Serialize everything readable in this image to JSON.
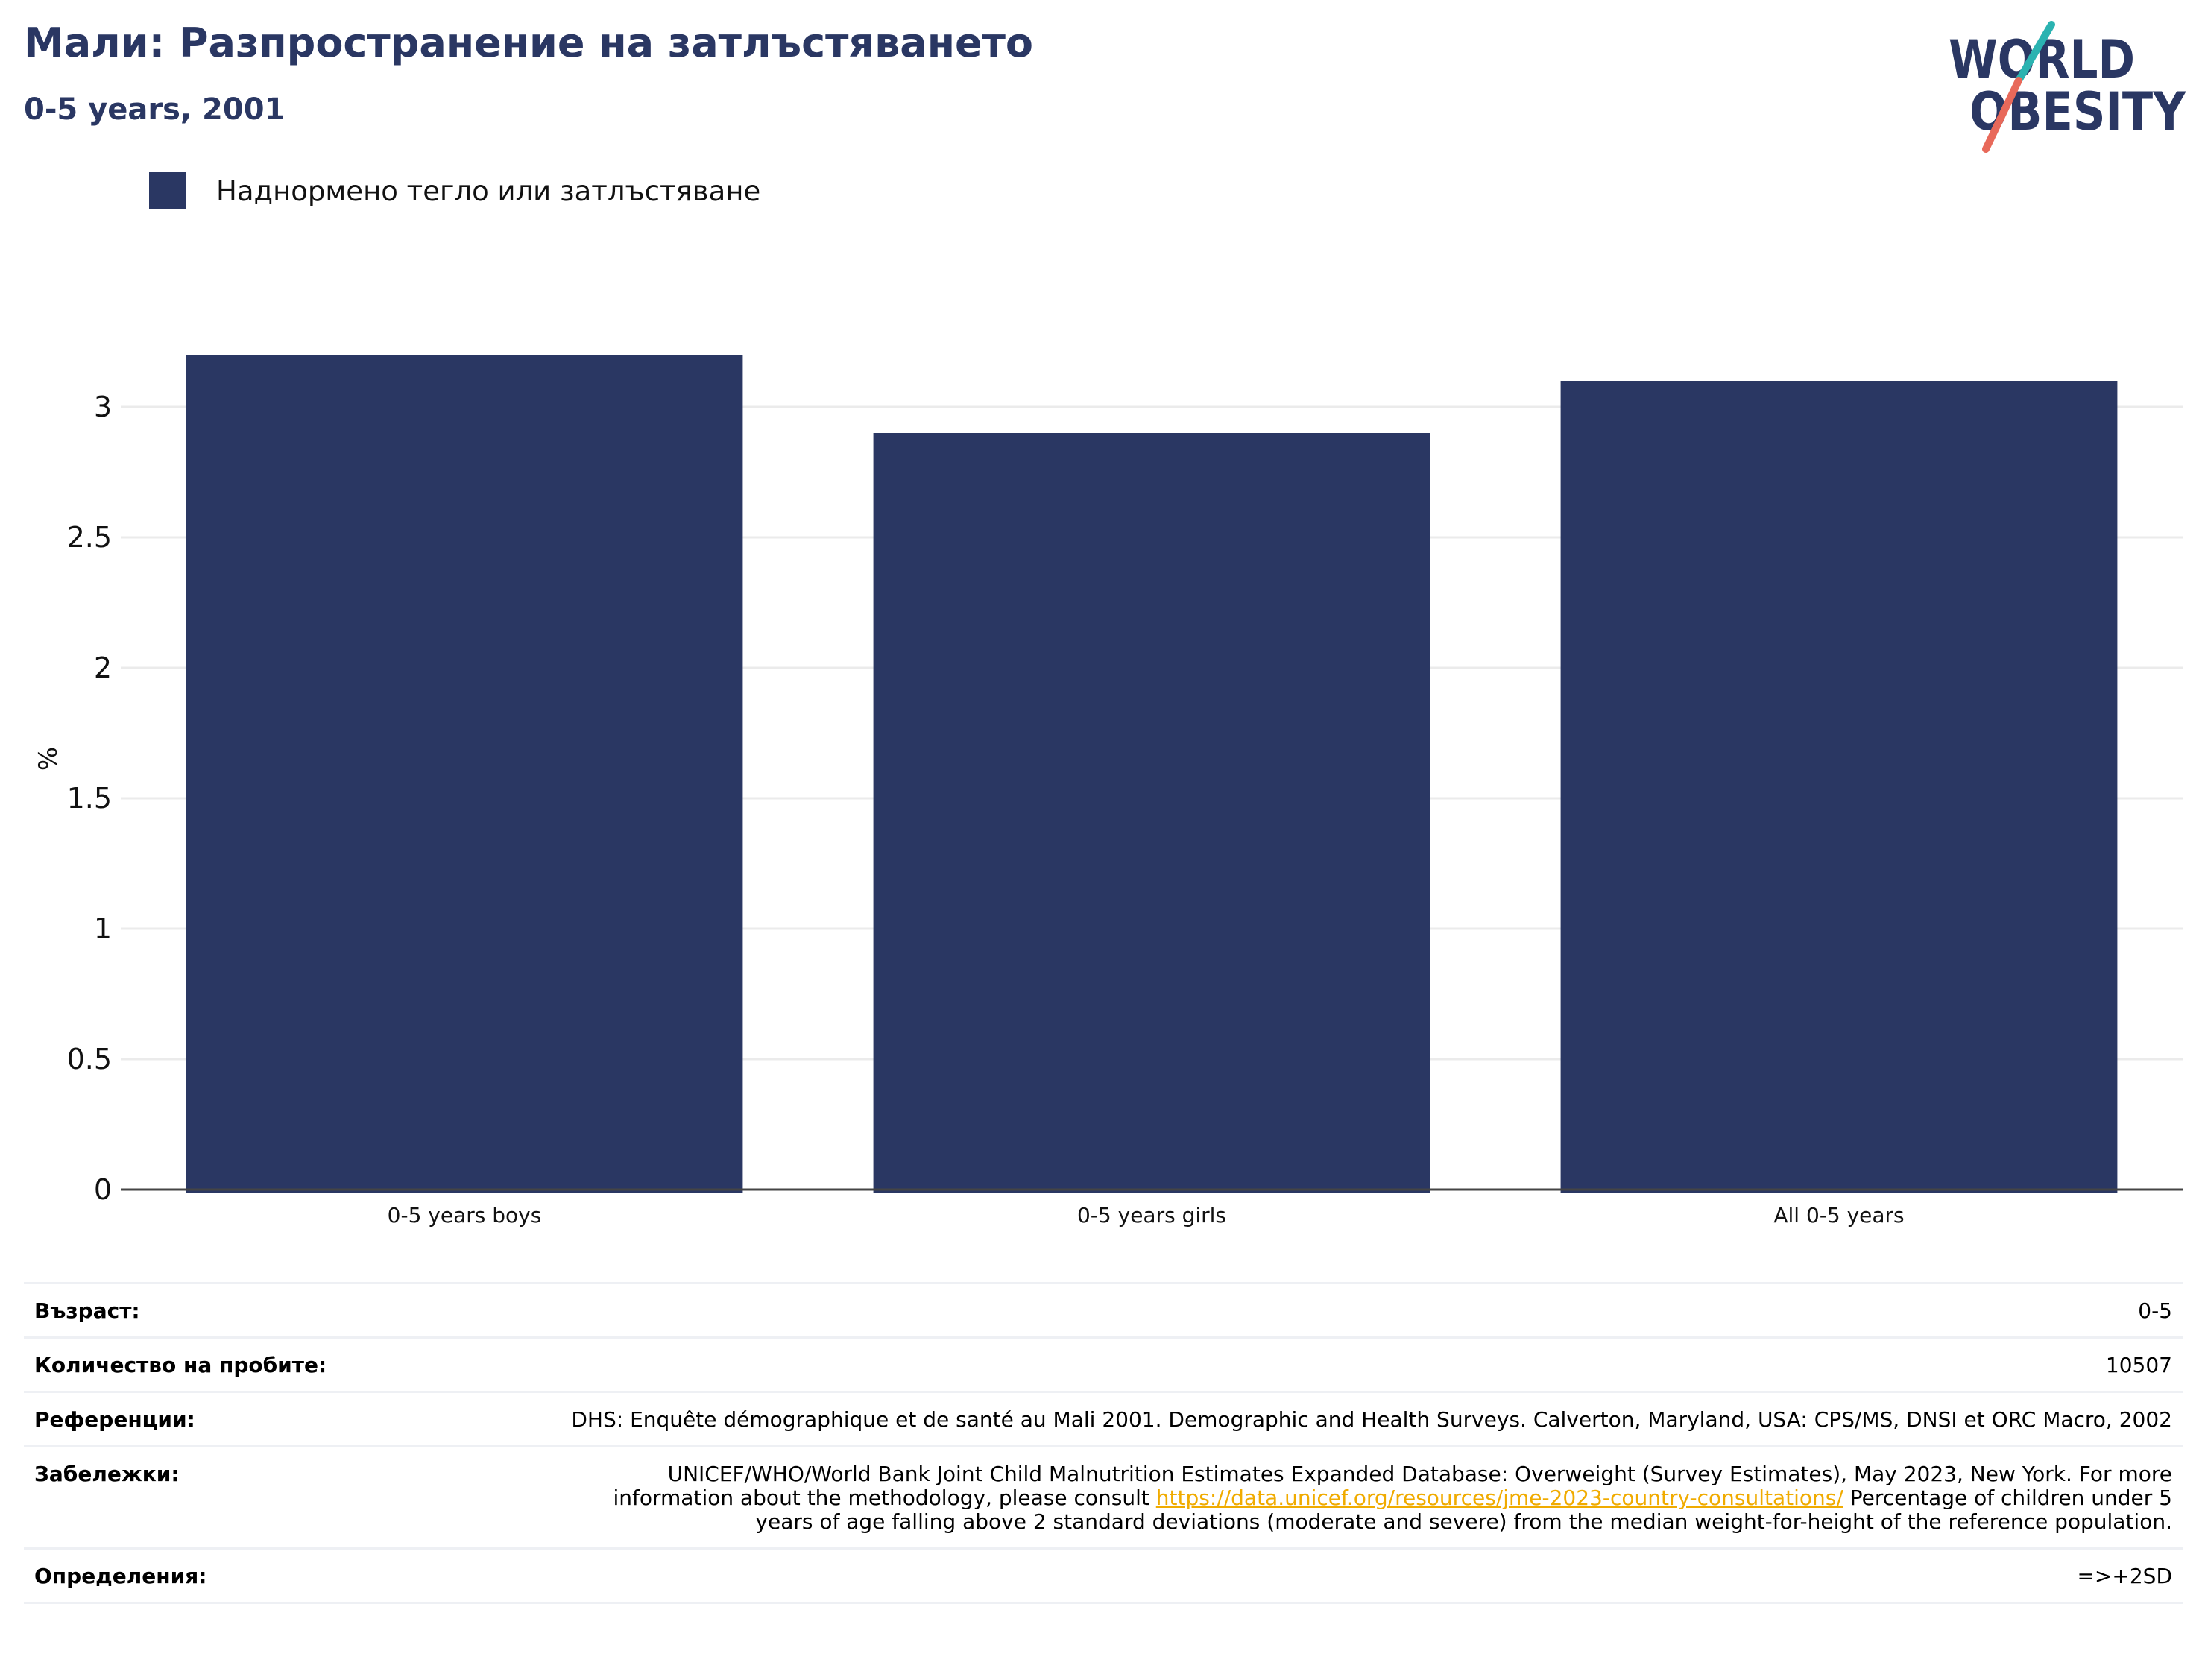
{
  "header": {
    "title": "Мали: Разпространение на затлъстяването",
    "subtitle": "0-5 years, 2001"
  },
  "logo": {
    "line1": "WORLD",
    "line2": "OBESITY",
    "colors": {
      "text": "#2a3763",
      "slash_top": "#2bb3b1",
      "slash_bottom": "#e8695a"
    }
  },
  "legend": {
    "items": [
      {
        "label": "Наднормено тегло или затлъстяване",
        "color": "#2a3763"
      }
    ]
  },
  "chart_data": {
    "type": "bar",
    "categories": [
      "0-5 years boys",
      "0-5 years girls",
      "All 0-5 years"
    ],
    "series": [
      {
        "name": "Наднормено тегло или затлъстяване",
        "values": [
          3.2,
          2.9,
          3.1
        ],
        "color": "#2a3763"
      }
    ],
    "ylabel": "%",
    "ylim": [
      0,
      3.28
    ],
    "yticks": [
      0,
      0.5,
      1,
      1.5,
      2,
      2.5,
      3
    ],
    "ytick_labels": [
      "0",
      "0.5",
      "1",
      "1.5",
      "2",
      "2.5",
      "3"
    ],
    "grid": true,
    "legend_position": "top-left"
  },
  "info": {
    "age": {
      "label": "Възраст:",
      "value": "0-5"
    },
    "sample": {
      "label": "Количество на пробите:",
      "value": "10507"
    },
    "references": {
      "label": "Референции:",
      "value": "DHS: Enquête démographique et de santé au Mali 2001. Demographic and Health Surveys. Calverton, Maryland, USA: CPS/MS, DNSI et ORC Macro, 2002"
    },
    "notes": {
      "label": "Забележки:",
      "text_before": "UNICEF/WHO/World Bank Joint Child Malnutrition Estimates Expanded Database: Overweight (Survey Estimates), May 2023, New York. For more information about the methodology, please consult ",
      "link": "https://data.unicef.org/resources/jme-2023-country-consultations/",
      "text_after": " Percentage of children under 5 years of age falling above 2 standard deviations (moderate and severe) from the median weight-for-height of the reference population."
    },
    "definitions": {
      "label": "Определения:",
      "value": "=>+2SD"
    }
  }
}
